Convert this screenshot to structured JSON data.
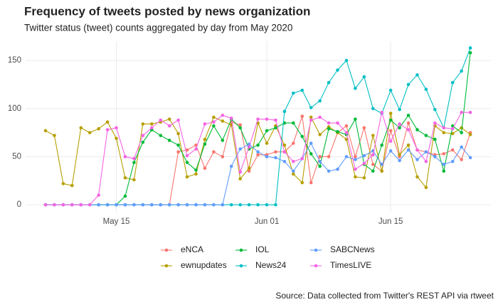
{
  "chart_data": {
    "type": "line",
    "title": "Frequency of tweets posted by news organization",
    "subtitle": "Twitter status (tweet) counts aggregated by day from May 2020",
    "caption": "Source: Data collected from Twitter's REST API via rtweet",
    "x": [
      "May 07",
      "May 08",
      "May 09",
      "May 10",
      "May 11",
      "May 12",
      "May 13",
      "May 14",
      "May 15",
      "May 16",
      "May 17",
      "May 18",
      "May 19",
      "May 20",
      "May 21",
      "May 22",
      "May 23",
      "May 24",
      "May 25",
      "May 26",
      "May 27",
      "May 28",
      "May 29",
      "May 30",
      "May 31",
      "Jun 01",
      "Jun 02",
      "Jun 03",
      "Jun 04",
      "Jun 05",
      "Jun 06",
      "Jun 07",
      "Jun 08",
      "Jun 09",
      "Jun 10",
      "Jun 11",
      "Jun 12",
      "Jun 13",
      "Jun 14",
      "Jun 15",
      "Jun 16",
      "Jun 17",
      "Jun 18",
      "Jun 19",
      "Jun 20",
      "Jun 21",
      "Jun 22",
      "Jun 23",
      "Jun 24"
    ],
    "xticks": [
      "May 15",
      "Jun 01",
      "Jun 15"
    ],
    "ylim": [
      -8,
      170
    ],
    "yticks": [
      0,
      50,
      100,
      150
    ],
    "grid": true,
    "legend": "bottom",
    "series": [
      {
        "name": "eNCA",
        "color": "#F8766D",
        "values": [
          0,
          0,
          0,
          0,
          0,
          0,
          0,
          0,
          0,
          0,
          0,
          0,
          0,
          0,
          0,
          55,
          57,
          62,
          38,
          55,
          50,
          86,
          83,
          35,
          52,
          52,
          55,
          55,
          64,
          92,
          23,
          50,
          50,
          75,
          82,
          50,
          80,
          42,
          35,
          77,
          50,
          85,
          57,
          55,
          52,
          53,
          57,
          47,
          75
        ]
      },
      {
        "name": "ewnupdates",
        "color": "#B79F00",
        "values": [
          77,
          72,
          22,
          20,
          80,
          75,
          79,
          86,
          69,
          28,
          26,
          84,
          84,
          86,
          89,
          74,
          29,
          32,
          68,
          91,
          87,
          83,
          27,
          38,
          85,
          64,
          82,
          62,
          32,
          23,
          91,
          73,
          81,
          75,
          68,
          29,
          28,
          72,
          35,
          95,
          52,
          62,
          29,
          18,
          82,
          75,
          74,
          80,
          73
        ]
      },
      {
        "name": "IOL",
        "color": "#00BA38",
        "values": [
          0,
          0,
          0,
          0,
          0,
          0,
          0,
          0,
          0,
          9,
          44,
          65,
          78,
          72,
          67,
          62,
          44,
          36,
          63,
          82,
          67,
          89,
          80,
          58,
          62,
          77,
          80,
          85,
          85,
          71,
          53,
          40,
          79,
          76,
          73,
          89,
          42,
          35,
          62,
          88,
          80,
          93,
          78,
          72,
          68,
          35,
          82,
          75,
          158
        ]
      },
      {
        "name": "News24",
        "color": "#00BFC4",
        "values": [
          0,
          0,
          0,
          0,
          0,
          0,
          0,
          0,
          0,
          0,
          0,
          0,
          0,
          0,
          0,
          0,
          0,
          0,
          0,
          0,
          0,
          0,
          0,
          0,
          0,
          0,
          0,
          97,
          116,
          119,
          101,
          108,
          127,
          140,
          150,
          121,
          133,
          100,
          95,
          119,
          99,
          125,
          135,
          120,
          99,
          80,
          127,
          139,
          163
        ]
      },
      {
        "name": "SABCNews",
        "color": "#619CFF",
        "values": [
          0,
          0,
          0,
          0,
          0,
          0,
          0,
          0,
          0,
          0,
          0,
          0,
          0,
          0,
          0,
          0,
          0,
          0,
          0,
          0,
          0,
          40,
          58,
          63,
          55,
          50,
          49,
          45,
          35,
          48,
          64,
          45,
          35,
          37,
          50,
          47,
          51,
          56,
          42,
          56,
          46,
          57,
          47,
          55,
          50,
          42,
          45,
          60,
          49
        ]
      },
      {
        "name": "TimesLIVE",
        "color": "#F564E3",
        "values": [
          0,
          0,
          0,
          0,
          0,
          0,
          10,
          78,
          80,
          50,
          48,
          72,
          80,
          88,
          82,
          88,
          51,
          58,
          84,
          86,
          93,
          90,
          34,
          60,
          89,
          89,
          88,
          55,
          45,
          48,
          88,
          91,
          85,
          85,
          75,
          37,
          43,
          52,
          96,
          66,
          84,
          78,
          57,
          45,
          85,
          80,
          79,
          96,
          96
        ]
      }
    ]
  }
}
